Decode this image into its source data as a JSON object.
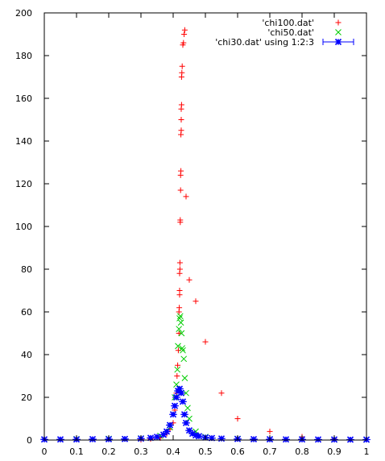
{
  "chart_data": {
    "type": "scatter",
    "title": "",
    "xlabel": "",
    "ylabel": "",
    "xlim": [
      0,
      1
    ],
    "ylim": [
      0,
      200
    ],
    "x_ticks": [
      "0",
      "0.1",
      "0.2",
      "0.3",
      "0.4",
      "0.5",
      "0.6",
      "0.7",
      "0.8",
      "0.9",
      "1"
    ],
    "y_ticks": [
      "0",
      "20",
      "40",
      "60",
      "80",
      "100",
      "120",
      "140",
      "160",
      "180",
      "200"
    ],
    "legend_position": "top-right",
    "series": [
      {
        "name": "'chi100.dat'",
        "color": "#ff0000",
        "marker": "plus",
        "peak_x": 0.42,
        "peak_y": 191,
        "x": [
          0.3,
          0.33,
          0.36,
          0.38,
          0.39,
          0.4,
          0.405,
          0.41,
          0.412,
          0.414,
          0.416,
          0.418,
          0.418,
          0.419,
          0.42,
          0.42,
          0.42,
          0.421,
          0.421,
          0.422,
          0.422,
          0.423,
          0.423,
          0.424,
          0.424,
          0.425,
          0.425,
          0.425,
          0.426,
          0.426,
          0.427,
          0.428,
          0.43,
          0.432,
          0.434,
          0.436,
          0.44,
          0.45,
          0.47,
          0.5,
          0.55,
          0.6,
          0.7,
          0.8,
          0.9
        ],
        "y": [
          0.2,
          0.5,
          1.0,
          3.0,
          5.0,
          8.0,
          14.0,
          22.0,
          30.0,
          35.0,
          42.0,
          50.0,
          60.0,
          62.0,
          68.0,
          70.0,
          78.0,
          80.0,
          83.0,
          102.0,
          103.0,
          117.0,
          124.0,
          126.0,
          143.0,
          145.0,
          150.0,
          155.0,
          157.0,
          170.0,
          172.0,
          175.0,
          185.0,
          186.0,
          190.0,
          192.0,
          114.0,
          75.0,
          65.0,
          46.0,
          22.0,
          10.0,
          4.0,
          1.5,
          0.5
        ]
      },
      {
        "name": "'chi50.dat'",
        "color": "#00cc00",
        "marker": "cross",
        "peak_x": 0.42,
        "peak_y": 58,
        "x": [
          0.0,
          0.1,
          0.2,
          0.3,
          0.36,
          0.39,
          0.4,
          0.405,
          0.41,
          0.413,
          0.415,
          0.418,
          0.42,
          0.422,
          0.424,
          0.426,
          0.428,
          0.43,
          0.433,
          0.436,
          0.44,
          0.445,
          0.45,
          0.47,
          0.5,
          0.6,
          0.7,
          0.8,
          0.9,
          1.0
        ],
        "y": [
          0.3,
          0.5,
          0.6,
          0.8,
          2.0,
          6.0,
          12.0,
          20.0,
          26.0,
          33.0,
          44.0,
          52.0,
          57.0,
          58.0,
          55.0,
          50.0,
          43.0,
          42.0,
          38.0,
          29.0,
          22.0,
          15.0,
          10.0,
          4.0,
          1.5,
          0.6,
          0.4,
          0.3,
          0.2,
          0.2
        ]
      },
      {
        "name": "'chi30.dat' using 1:2:3",
        "color": "#0000ff",
        "marker": "star-errorbar",
        "peak_x": 0.42,
        "peak_y": 24,
        "x": [
          0.0,
          0.05,
          0.1,
          0.15,
          0.2,
          0.25,
          0.3,
          0.33,
          0.35,
          0.37,
          0.38,
          0.39,
          0.4,
          0.405,
          0.41,
          0.415,
          0.42,
          0.425,
          0.43,
          0.435,
          0.44,
          0.45,
          0.46,
          0.47,
          0.48,
          0.5,
          0.52,
          0.55,
          0.6,
          0.65,
          0.7,
          0.75,
          0.8,
          0.85,
          0.9,
          0.95,
          1.0
        ],
        "y": [
          0.3,
          0.3,
          0.3,
          0.4,
          0.4,
          0.5,
          0.7,
          1.0,
          1.5,
          2.5,
          4.0,
          7.0,
          12.0,
          16.0,
          20.0,
          23.0,
          24.0,
          22.0,
          18.0,
          12.0,
          8.0,
          4.5,
          3.0,
          2.2,
          1.8,
          1.2,
          0.9,
          0.7,
          0.5,
          0.4,
          0.35,
          0.3,
          0.3,
          0.25,
          0.25,
          0.2,
          0.2
        ]
      }
    ],
    "grid": false
  }
}
